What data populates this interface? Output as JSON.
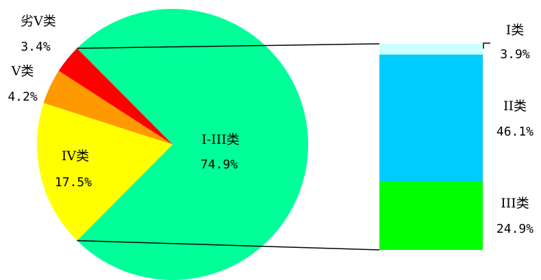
{
  "chart_data": {
    "type": "pie",
    "pie": {
      "slices": [
        {
          "label": "I-III类",
          "value_text": "74.9%",
          "value": 74.9,
          "color": "#00FF99"
        },
        {
          "label": "IV类",
          "value_text": "17.5%",
          "value": 17.5,
          "color": "#FFFF00"
        },
        {
          "label": "V类",
          "value_text": "4.2%",
          "value": 4.2,
          "color": "#FF9900"
        },
        {
          "label": "劣V类",
          "value_text": "3.4%",
          "value": 3.4,
          "color": "#FF0000"
        }
      ]
    },
    "bar": {
      "type": "stacked-bar",
      "segments": [
        {
          "label": "III类",
          "value_text": "24.9%",
          "value": 24.9,
          "color": "#00FF00"
        },
        {
          "label": "II类",
          "value_text": "46.1%",
          "value": 46.1,
          "color": "#00CCFF"
        },
        {
          "label": "I类",
          "value_text": "3.9%",
          "value": 3.9,
          "color": "#CCFFFF"
        }
      ]
    }
  }
}
